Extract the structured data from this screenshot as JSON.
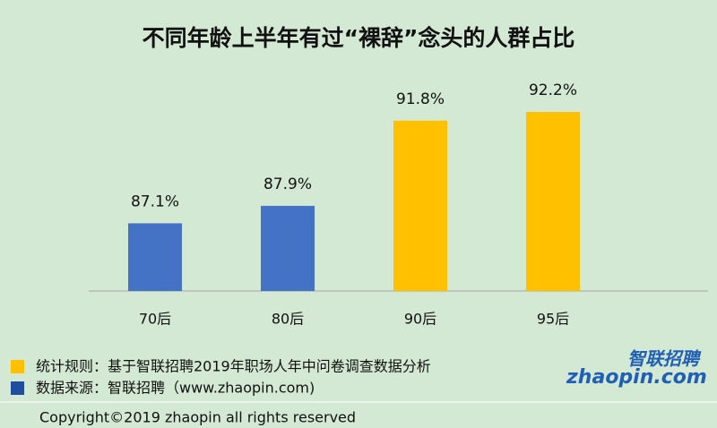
{
  "chart_data": {
    "type": "bar",
    "title": "不同年龄上半年有过“裸辞”念头的人群占比",
    "categories": [
      "70后",
      "80后",
      "90后",
      "95后"
    ],
    "values": [
      87.1,
      87.9,
      91.8,
      92.2
    ],
    "value_labels": [
      "87.1%",
      "87.9%",
      "91.8%",
      "92.2%"
    ],
    "colors": [
      "#4472c4",
      "#4472c4",
      "#ffc000",
      "#ffc000"
    ],
    "ylim": [
      84,
      93
    ]
  },
  "notes": [
    {
      "text": "统计规则：基于智联招聘2019年职场人年中问卷调查数据分析",
      "color": "#ffc000"
    },
    {
      "text": "数据来源：智联招聘（www.zhaopin.com)",
      "color": "#1f4e9e"
    }
  ],
  "logo": {
    "name": "智联招聘",
    "site": "zhaopin.com"
  },
  "copyright": "Copyright©2019 zhaopin all rights reserved"
}
